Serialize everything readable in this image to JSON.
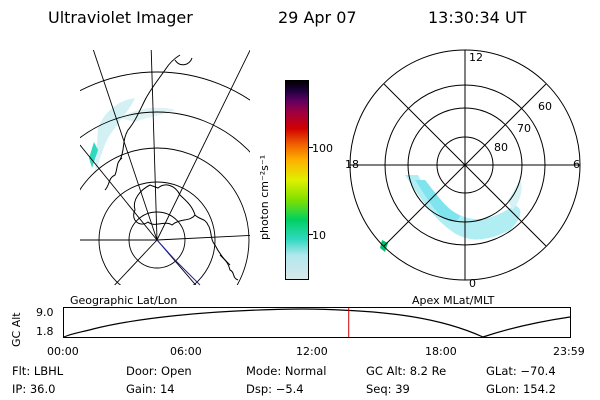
{
  "header": {
    "instrument": "Ultraviolet Imager",
    "date": "29 Apr 07",
    "time": "13:30:34 UT"
  },
  "colors": {
    "aurora": "#8fe8f0",
    "aurora_bright": "#00e0a0",
    "lines": "#000000",
    "marker": "#cc0000",
    "track": "#2020aa"
  },
  "left_map": {
    "caption": "Geographic Lat/Lon"
  },
  "right_map": {
    "caption": "Apex MLat/MLT",
    "mlt_labels": {
      "top": "12",
      "right": "6",
      "bottom": "0",
      "left": "18"
    },
    "lat_labels": [
      "60",
      "70",
      "80"
    ]
  },
  "colorbar": {
    "unit_label": "photon cm⁻²s⁻¹",
    "tick_labels": [
      "100",
      "10"
    ],
    "stops": [
      "#d8e8ea",
      "#b0e8ee",
      "#30d8c0",
      "#00d060",
      "#80e000",
      "#e0f000",
      "#ffb000",
      "#f06000",
      "#d00000",
      "#a00040",
      "#600060",
      "#200040",
      "#000000"
    ]
  },
  "altitude_plot": {
    "ylabel": "GC Alt",
    "ytick_labels": [
      "9.0",
      "1.8"
    ],
    "xtick_labels": [
      "00:00",
      "06:00",
      "12:00",
      "18:00",
      "23:59"
    ],
    "current_time_fraction": 0.5627
  },
  "info": {
    "row1": {
      "flt": {
        "label": "Flt:",
        "value": "LBHL"
      },
      "door": {
        "label": "Door:",
        "value": "Open"
      },
      "mode": {
        "label": "Mode:",
        "value": "Normal"
      },
      "gcalt": {
        "label": "GC Alt:",
        "value": "8.2 Re"
      },
      "glat": {
        "label": "GLat:",
        "value": "−70.4"
      }
    },
    "row2": {
      "ip": {
        "label": "IP:",
        "value": "36.0"
      },
      "gain": {
        "label": "Gain:",
        "value": "14"
      },
      "dsp": {
        "label": "Dsp:",
        "value": "−5.4"
      },
      "seq": {
        "label": "Seq:",
        "value": "39"
      },
      "glon": {
        "label": "GLon:",
        "value": "154.2"
      }
    }
  }
}
